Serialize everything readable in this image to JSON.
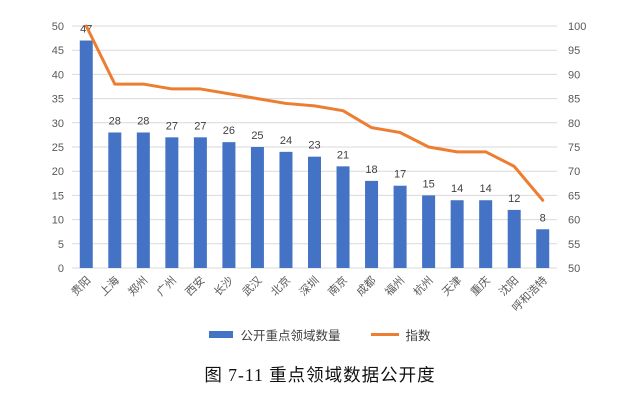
{
  "figure": {
    "caption": "图 7-11 重点领域数据公开度"
  },
  "legend": {
    "items": [
      {
        "label": "公开重点领域数量",
        "type": "bar",
        "color": "#4472C4"
      },
      {
        "label": "指数",
        "type": "line",
        "color": "#ED7D31"
      }
    ]
  },
  "chart_data": {
    "type": "bar",
    "combo": "bar + line, dual y-axis",
    "title": "",
    "categories": [
      "贵阳",
      "上海",
      "郑州",
      "广州",
      "西安",
      "长沙",
      "武汉",
      "北京",
      "深圳",
      "南京",
      "成都",
      "福州",
      "杭州",
      "天津",
      "重庆",
      "沈阳",
      "呼和浩特"
    ],
    "series": [
      {
        "name": "公开重点领域数量",
        "type": "bar",
        "axis": "left",
        "color": "#4472C4",
        "values": [
          47,
          28,
          28,
          27,
          27,
          26,
          25,
          24,
          23,
          21,
          18,
          17,
          15,
          14,
          14,
          12,
          8
        ],
        "data_labels": true
      },
      {
        "name": "指数",
        "type": "line",
        "axis": "right",
        "color": "#ED7D31",
        "values": [
          100,
          88,
          88,
          87,
          87,
          86,
          85,
          84,
          83.5,
          82.5,
          79,
          78,
          75,
          74,
          74,
          71,
          64
        ],
        "data_labels": false
      }
    ],
    "left_axis": {
      "min": 0,
      "max": 50,
      "step": 5
    },
    "right_axis": {
      "min": 50,
      "max": 100,
      "step": 5
    },
    "grid": true,
    "legend_position": "bottom",
    "x_label_rotation": -45,
    "styles": {
      "gridline_color": "#d9d9d9",
      "axis_label_color": "#595959",
      "data_label_color": "#3f3f3f",
      "background": "#ffffff"
    }
  }
}
